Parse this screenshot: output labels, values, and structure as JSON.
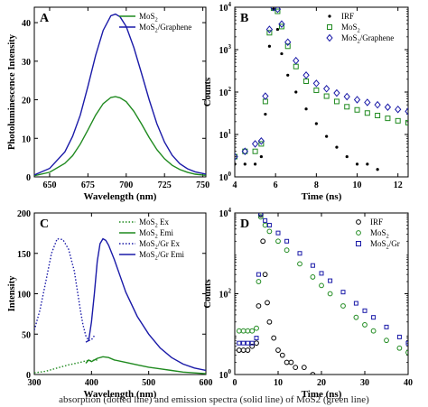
{
  "caption": "absorption (dotted line) and emission spectra (solid line) of MoS2 (green line)",
  "chart_data": [
    {
      "panel": "A",
      "type": "line",
      "xlabel": "Wavelength (nm)",
      "ylabel": "Photoluminescence Intensity",
      "xlim": [
        640,
        752
      ],
      "ylim": [
        0,
        44
      ],
      "xticks": [
        650,
        675,
        700,
        725,
        750
      ],
      "yticks": [
        0,
        10,
        20,
        30,
        40
      ],
      "legend_position": "top-right",
      "series": [
        {
          "name": "MoS2",
          "label_main": "MoS",
          "label_sub": "2",
          "label_tail": "",
          "color": "#1f8a1f",
          "style": "solid",
          "x": [
            640,
            650,
            660,
            665,
            670,
            675,
            680,
            685,
            690,
            693,
            696,
            700,
            705,
            710,
            715,
            720,
            725,
            730,
            735,
            740,
            745,
            752
          ],
          "y": [
            0.3,
            1.2,
            3.5,
            5.5,
            8.5,
            12.2,
            16.0,
            19.0,
            20.6,
            20.8,
            20.5,
            19.5,
            17.0,
            13.7,
            10.2,
            7.1,
            4.7,
            3.0,
            1.9,
            1.2,
            0.7,
            0.4
          ]
        },
        {
          "name": "MoS2/Graphene",
          "label_main": "MoS",
          "label_sub": "2",
          "label_tail": "/Graphene",
          "color": "#1a1aa8",
          "style": "solid",
          "x": [
            640,
            650,
            660,
            665,
            670,
            675,
            680,
            685,
            690,
            693,
            696,
            700,
            705,
            710,
            715,
            720,
            725,
            730,
            735,
            740,
            745,
            752
          ],
          "y": [
            0.5,
            2.2,
            6.5,
            10.5,
            16.0,
            23.5,
            31.5,
            38.0,
            41.8,
            42.2,
            41.5,
            39.0,
            33.5,
            26.8,
            20.0,
            13.8,
            9.0,
            5.6,
            3.4,
            2.1,
            1.3,
            0.7
          ]
        }
      ]
    },
    {
      "panel": "B",
      "type": "scatter",
      "xlabel": "Time (ns)",
      "ylabel": "Counts",
      "xlim": [
        4,
        12.5
      ],
      "ylim": [
        1,
        10000
      ],
      "yscale": "log",
      "xticks": [
        4,
        6,
        8,
        10,
        12
      ],
      "yticks": [
        1,
        10,
        100,
        1000,
        10000
      ],
      "ytick_labels": [
        "10^0",
        "10^1",
        "10^2",
        "10^3",
        "10^4"
      ],
      "legend_position": "top-right",
      "series": [
        {
          "name": "IRF",
          "label_main": "IRF",
          "label_sub": "",
          "label_tail": "",
          "color": "#000000",
          "marker": "dot",
          "x": [
            4.0,
            4.5,
            5.0,
            5.3,
            5.5,
            5.7,
            5.9,
            6.1,
            6.3,
            6.6,
            7.0,
            7.5,
            8.0,
            8.5,
            9.0,
            9.5,
            10.0,
            10.5,
            11.0
          ],
          "y": [
            2,
            2,
            2,
            3,
            30,
            1200,
            9000,
            3000,
            800,
            250,
            100,
            40,
            18,
            9,
            5,
            3,
            2,
            2,
            1.5
          ]
        },
        {
          "name": "MoS2",
          "label_main": "MoS",
          "label_sub": "2",
          "label_tail": "",
          "color": "#1f8a1f",
          "marker": "square",
          "x": [
            4.0,
            4.5,
            5.0,
            5.3,
            5.5,
            5.7,
            5.9,
            6.1,
            6.3,
            6.6,
            7.0,
            7.5,
            8.0,
            8.5,
            9.0,
            9.5,
            10.0,
            10.5,
            11.0,
            11.5,
            12.0,
            12.5
          ],
          "y": [
            3,
            4,
            4,
            6,
            60,
            2500,
            9500,
            8000,
            3500,
            1200,
            400,
            180,
            110,
            80,
            60,
            45,
            38,
            32,
            28,
            24,
            21,
            19
          ]
        },
        {
          "name": "MoS2/Graphene",
          "label_main": "MoS",
          "label_sub": "2",
          "label_tail": "/Graphene",
          "color": "#1a1aa8",
          "marker": "diamond",
          "x": [
            4.0,
            4.5,
            5.0,
            5.3,
            5.5,
            5.7,
            5.9,
            6.1,
            6.3,
            6.6,
            7.0,
            7.5,
            8.0,
            8.5,
            9.0,
            9.5,
            10.0,
            10.5,
            11.0,
            11.5,
            12.0,
            12.5
          ],
          "y": [
            3,
            4,
            6,
            7,
            80,
            3000,
            9800,
            9000,
            4000,
            1500,
            550,
            250,
            160,
            120,
            95,
            78,
            66,
            57,
            50,
            44,
            39,
            35
          ]
        }
      ]
    },
    {
      "panel": "C",
      "type": "line",
      "xlabel": "Wavelength (nm)",
      "ylabel": "Intensity",
      "xlim": [
        300,
        600
      ],
      "ylim": [
        0,
        200
      ],
      "xticks": [
        300,
        400,
        500,
        600
      ],
      "yticks": [
        0,
        50,
        100,
        150,
        200
      ],
      "legend_position": "top-right",
      "series": [
        {
          "name": "MoS2 Ex",
          "label_main": "MoS",
          "label_sub": "2",
          "label_tail": " Ex",
          "color": "#1f8a1f",
          "style": "dotted",
          "x": [
            300,
            320,
            340,
            360,
            380,
            390,
            400,
            405,
            410
          ],
          "y": [
            2,
            4,
            8,
            12,
            15,
            17,
            17,
            18,
            18
          ]
        },
        {
          "name": "MoS2 Emi",
          "label_main": "MoS",
          "label_sub": "2",
          "label_tail": " Emi",
          "color": "#1f8a1f",
          "style": "solid",
          "x": [
            390,
            395,
            400,
            410,
            420,
            430,
            440,
            460,
            480,
            500,
            520,
            540,
            560,
            580,
            600
          ],
          "y": [
            14,
            18,
            16,
            20,
            22,
            21,
            18,
            15,
            12,
            9,
            7,
            5,
            3,
            2,
            1
          ]
        },
        {
          "name": "MoS2/Gr Ex",
          "label_main": "MoS",
          "label_sub": "2",
          "label_tail": "/Gr Ex",
          "color": "#1a1aa8",
          "style": "dotted",
          "x": [
            300,
            310,
            320,
            330,
            340,
            350,
            360,
            370,
            375,
            380,
            385,
            390,
            395,
            400,
            405
          ],
          "y": [
            55,
            80,
            115,
            150,
            168,
            167,
            155,
            128,
            105,
            82,
            62,
            48,
            42,
            43,
            48
          ]
        },
        {
          "name": "MoS2/Gr Emi",
          "label_main": "MoS",
          "label_sub": "2",
          "label_tail": "/Gr Emi",
          "color": "#1a1aa8",
          "style": "solid",
          "x": [
            390,
            395,
            400,
            405,
            410,
            415,
            420,
            425,
            430,
            440,
            450,
            460,
            480,
            500,
            520,
            540,
            560,
            580,
            600
          ],
          "y": [
            40,
            42,
            65,
            100,
            140,
            162,
            168,
            166,
            160,
            142,
            122,
            102,
            72,
            50,
            33,
            21,
            13,
            8,
            5
          ]
        }
      ]
    },
    {
      "panel": "D",
      "type": "scatter",
      "xlabel": "Time (ns)",
      "ylabel": "Counts",
      "xlim": [
        0,
        40
      ],
      "ylim": [
        1,
        10000
      ],
      "yscale": "log",
      "xticks": [
        0,
        10,
        20,
        30,
        40
      ],
      "yticks": [
        1,
        100,
        10000
      ],
      "ytick_labels": [
        "10^0",
        "10^2",
        "10^4"
      ],
      "legend_position": "top-right",
      "series": [
        {
          "name": "IRF",
          "label_main": "IRF",
          "label_sub": "",
          "label_tail": "",
          "color": "#000000",
          "marker": "circle-open",
          "x": [
            1,
            2,
            3,
            4,
            5,
            5.5,
            6,
            6.5,
            7,
            7.5,
            8,
            9,
            10,
            11,
            12,
            13,
            14,
            16,
            18
          ],
          "y": [
            4,
            4,
            4,
            5,
            6,
            50,
            9000,
            2000,
            300,
            60,
            20,
            8,
            4,
            3,
            2,
            2,
            1.5,
            1.5,
            1
          ]
        },
        {
          "name": "MoS2",
          "label_main": "MoS",
          "label_sub": "2",
          "label_tail": "",
          "color": "#1f8a1f",
          "marker": "circle-open",
          "x": [
            1,
            2,
            3,
            4,
            5,
            5.5,
            6,
            7,
            8,
            10,
            12,
            15,
            18,
            20,
            22,
            25,
            28,
            30,
            32,
            35,
            38,
            40
          ],
          "y": [
            12,
            12,
            12,
            12,
            14,
            200,
            8000,
            5000,
            3500,
            2000,
            1200,
            550,
            260,
            160,
            100,
            50,
            26,
            17,
            12,
            7,
            4.5,
            3.5
          ]
        },
        {
          "name": "MoS2/Gr",
          "label_main": "MoS",
          "label_sub": "2",
          "label_tail": "/Gr",
          "color": "#1a1aa8",
          "marker": "square-open",
          "x": [
            1,
            2,
            3,
            4,
            5,
            5.5,
            6,
            7,
            8,
            10,
            12,
            15,
            18,
            20,
            22,
            25,
            28,
            30,
            32,
            35,
            38,
            40
          ],
          "y": [
            6,
            6,
            6,
            6,
            8,
            300,
            9500,
            6500,
            5000,
            3200,
            2000,
            1000,
            500,
            320,
            210,
            110,
            58,
            38,
            26,
            15,
            8.5,
            6
          ]
        }
      ]
    }
  ]
}
